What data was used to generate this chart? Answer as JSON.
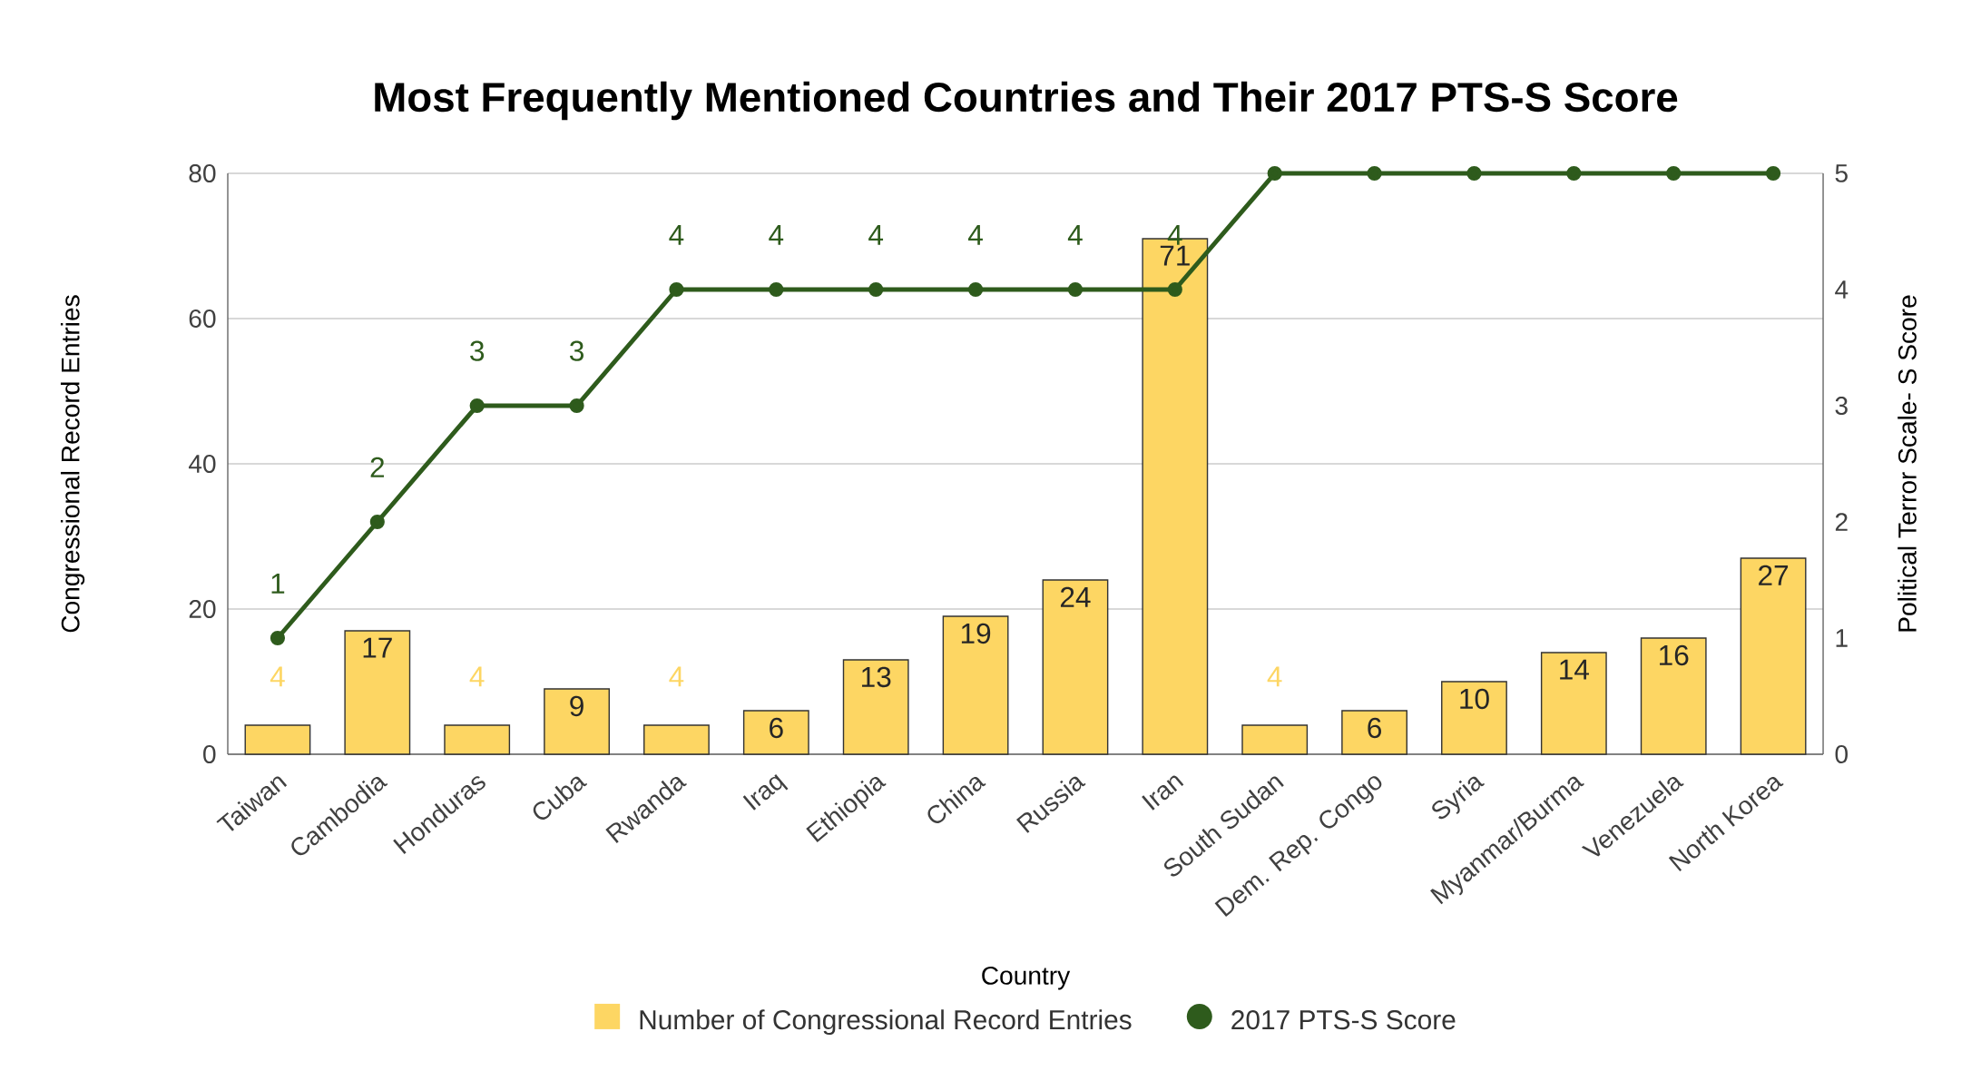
{
  "chart_data": {
    "type": "bar",
    "title": "Most Frequently Mentioned Countries and Their 2017 PTS-S Score",
    "xlabel": "Country",
    "ylabel": "Congressional Record Entries",
    "y2label": "Political Terror Scale- S Score",
    "categories": [
      "Taiwan",
      "Cambodia",
      "Honduras",
      "Cuba",
      "Rwanda",
      "Iraq",
      "Ethiopia",
      "China",
      "Russia",
      "Iran",
      "South Sudan",
      "Dem. Rep. Congo",
      "Syria",
      "Myanmar/Burma",
      "Venezuela",
      "North Korea"
    ],
    "series": [
      {
        "name": "Number of Congressional Record Entries",
        "color": "#fdd663",
        "values": [
          4,
          17,
          4,
          9,
          4,
          6,
          13,
          19,
          24,
          71,
          4,
          6,
          10,
          14,
          16,
          27
        ]
      },
      {
        "name": "2017 PTS-S Score",
        "type": "line",
        "axis": "y2",
        "color": "#2e5b1c",
        "marker": "circle",
        "line_style": "solid",
        "values": [
          1,
          2,
          3,
          3,
          4,
          4,
          4,
          4,
          4,
          4,
          5,
          5,
          5,
          5,
          5,
          5
        ],
        "value_labels": [
          "1",
          "2",
          "3",
          "3",
          "4",
          "4",
          "4",
          "4",
          "4",
          "4",
          null,
          null,
          null,
          null,
          null,
          null
        ]
      }
    ],
    "data_labels": true,
    "ylim": [
      0,
      80
    ],
    "yticks": [
      0,
      20,
      40,
      60,
      80
    ],
    "y2lim": [
      0,
      5
    ],
    "y2ticks": [
      0,
      1,
      2,
      3,
      4,
      5
    ],
    "grid": "y",
    "legend": "bottom"
  }
}
